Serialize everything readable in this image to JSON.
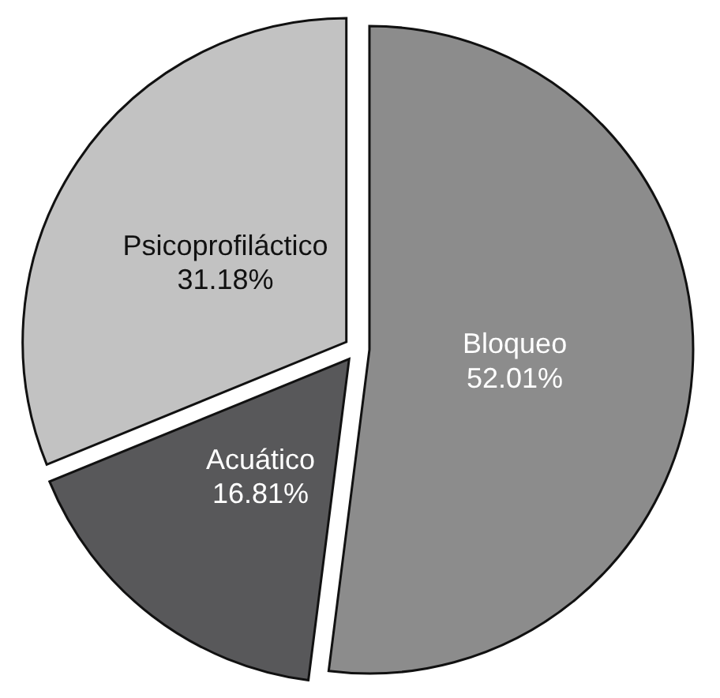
{
  "chart_data": {
    "type": "pie",
    "categories": [
      "Bloqueo",
      "Acuático",
      "Psicoprofiláctico"
    ],
    "values": [
      52.01,
      16.81,
      31.18
    ],
    "value_labels": [
      "52.01%",
      "16.81%",
      "31.18%"
    ],
    "colors": [
      "#8c8c8c",
      "#58585a",
      "#c2c2c2"
    ]
  }
}
